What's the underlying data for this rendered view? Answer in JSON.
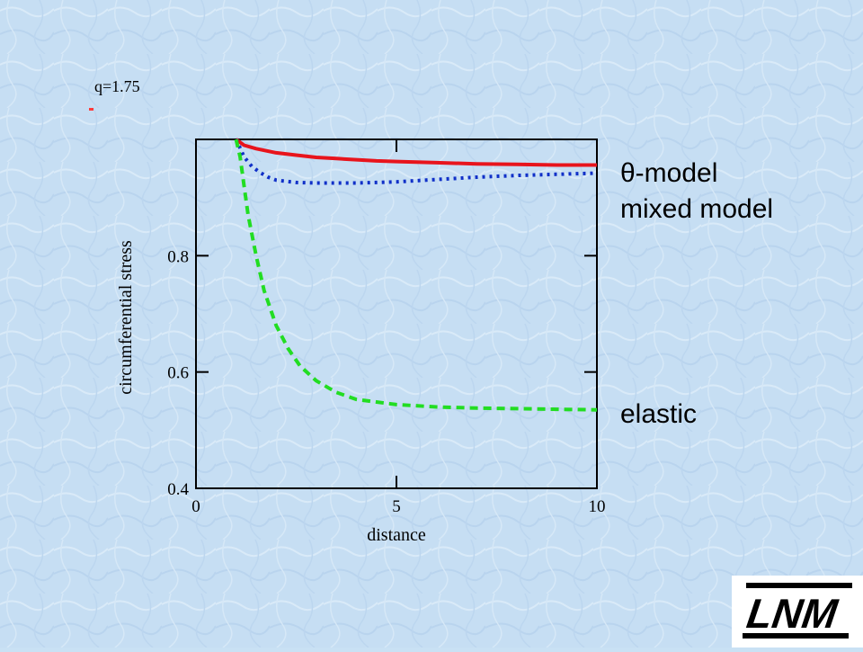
{
  "annotation": "q=1.75",
  "legend": {
    "theta": "θ-model",
    "mixed": "mixed model",
    "elastic": "elastic"
  },
  "logo": {
    "text": "LNM"
  },
  "chart_data": {
    "type": "line",
    "title": "",
    "xlabel": "distance",
    "ylabel": "circumferential stress",
    "xlim": [
      0,
      10
    ],
    "ylim": [
      0.4,
      1.0
    ],
    "xticks": [
      0,
      5,
      10
    ],
    "xtick_labels": [
      "0",
      "5",
      "10"
    ],
    "yticks": [
      0.4,
      0.6,
      0.8
    ],
    "ytick_labels": [
      "0.4",
      "0.6",
      "0.8"
    ],
    "grid": false,
    "series": [
      {
        "name": "θ-model",
        "color": "#e8141c",
        "style": "solid",
        "x": [
          1.0,
          1.2,
          1.5,
          2.0,
          2.5,
          3.0,
          3.5,
          4.0,
          4.5,
          5.0,
          5.5,
          6.0,
          7.0,
          8.0,
          9.0,
          10.0
        ],
        "y": [
          1.0,
          0.99,
          0.984,
          0.977,
          0.973,
          0.969,
          0.967,
          0.965,
          0.963,
          0.962,
          0.961,
          0.96,
          0.958,
          0.957,
          0.956,
          0.956
        ]
      },
      {
        "name": "mixed model",
        "color": "#1030c8",
        "style": "dotted",
        "x": [
          1.0,
          1.1,
          1.2,
          1.4,
          1.6,
          1.8,
          2.0,
          2.5,
          3.0,
          3.5,
          4.0,
          4.5,
          5.0,
          6.0,
          7.0,
          8.0,
          9.0,
          10.0
        ],
        "y": [
          1.0,
          0.985,
          0.97,
          0.953,
          0.943,
          0.935,
          0.93,
          0.926,
          0.925,
          0.925,
          0.925,
          0.926,
          0.927,
          0.931,
          0.935,
          0.938,
          0.94,
          0.942
        ]
      },
      {
        "name": "elastic",
        "color": "#22dd22",
        "style": "dashed",
        "x": [
          1.0,
          1.1,
          1.2,
          1.3,
          1.5,
          1.7,
          2.0,
          2.3,
          2.6,
          3.0,
          3.5,
          4.0,
          5.0,
          6.0,
          7.0,
          8.0,
          9.0,
          10.0
        ],
        "y": [
          1.0,
          0.97,
          0.92,
          0.87,
          0.8,
          0.74,
          0.68,
          0.64,
          0.61,
          0.585,
          0.565,
          0.553,
          0.544,
          0.54,
          0.538,
          0.537,
          0.536,
          0.535
        ]
      }
    ]
  }
}
